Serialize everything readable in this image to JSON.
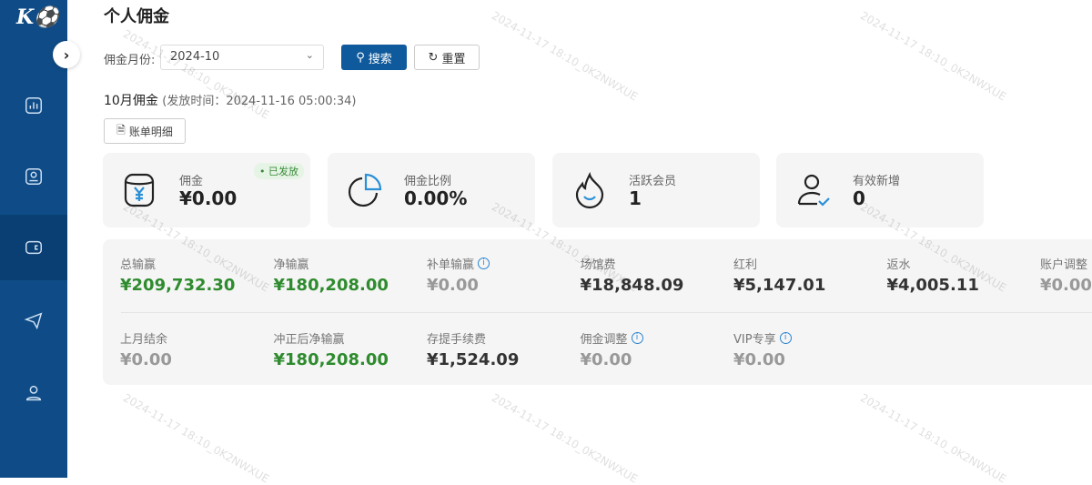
{
  "logo": "K",
  "page_title": "个人佣金",
  "filter": {
    "label": "佣金月份:",
    "value": "2024-10",
    "search": "搜索",
    "reset": "重置"
  },
  "period": {
    "title": "10月佣金",
    "release": "(发放时间：2024-11-16 05:00:34)",
    "detail_button": "账单明细"
  },
  "cards": [
    {
      "title": "佣金",
      "value": "¥0.00",
      "badge": "已发放"
    },
    {
      "title": "佣金比例",
      "value": "0.00%"
    },
    {
      "title": "活跃会员",
      "value": "1"
    },
    {
      "title": "有效新增",
      "value": "0"
    }
  ],
  "stats_row1": [
    {
      "label": "总输赢",
      "value": "¥209,732.30",
      "color": "#2e8b2e"
    },
    {
      "label": "净输赢",
      "value": "¥180,208.00",
      "color": "#2e8b2e"
    },
    {
      "label": "补单输赢",
      "value": "¥0.00",
      "color": "#999999",
      "info": true
    },
    {
      "label": "场馆费",
      "value": "¥18,848.09",
      "color": "#333333"
    },
    {
      "label": "红利",
      "value": "¥5,147.01",
      "color": "#333333"
    },
    {
      "label": "返水",
      "value": "¥4,005.11",
      "color": "#333333"
    },
    {
      "label": "账户调整",
      "value": "¥0.00",
      "color": "#999999"
    }
  ],
  "stats_row2": [
    {
      "label": "上月结余",
      "value": "¥0.00",
      "color": "#999999"
    },
    {
      "label": "冲正后净输赢",
      "value": "¥180,208.00",
      "color": "#2e8b2e"
    },
    {
      "label": "存提手续费",
      "value": "¥1,524.09",
      "color": "#333333"
    },
    {
      "label": "佣金调整",
      "value": "¥0.00",
      "color": "#999999",
      "info": true
    },
    {
      "label": "VIP专享",
      "value": "¥0.00",
      "color": "#999999",
      "info": true
    }
  ],
  "watermark": "2024-11-17 18:10_0K2NWXUE",
  "colors": {
    "sidebar": "#0f4c87",
    "primary": "#0f5a9c",
    "positive": "#2e8b2e"
  }
}
